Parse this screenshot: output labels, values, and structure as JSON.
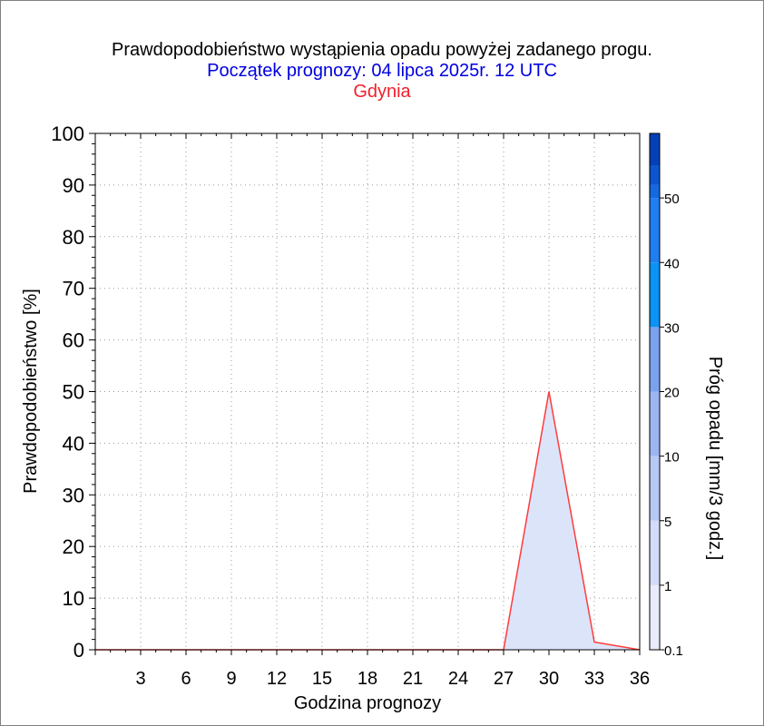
{
  "chart_data": {
    "type": "area",
    "title": "Prawdopodobieństwo wystąpienia opadu powyżej zadanego progu.",
    "subtitle": "Początek prognozy: 04 lipca 2025r. 12 UTC",
    "location": "Gdynia",
    "xlabel": "Godzina prognozy",
    "ylabel": "Prawdopodobieństwo [%]",
    "xlim": [
      0,
      36
    ],
    "ylim": [
      0,
      100
    ],
    "x_ticks": [
      3,
      6,
      9,
      12,
      15,
      18,
      21,
      24,
      27,
      30,
      33,
      36
    ],
    "y_ticks": [
      0,
      10,
      20,
      30,
      40,
      50,
      60,
      70,
      80,
      90,
      100
    ],
    "grid": true,
    "series": [
      {
        "x": [
          0,
          3,
          6,
          9,
          12,
          15,
          18,
          21,
          24,
          27,
          30,
          33,
          36
        ],
        "values": [
          0,
          0,
          0,
          0,
          0,
          0,
          0,
          0,
          0,
          0,
          50,
          1.5,
          0
        ],
        "color": "#ff3b3b",
        "fill": "#dce4fa"
      }
    ],
    "colorbar": {
      "label": "Próg opadu [mm/3 godz.]",
      "tick_labels": [
        "0.1",
        "1",
        "5",
        "10",
        "20",
        "30",
        "40",
        "50"
      ],
      "colors": [
        "#e8ecfb",
        "#d2dcf8",
        "#b9c9f5",
        "#9db6f2",
        "#7aa2ef",
        "#0b93f5",
        "#1f7ef0",
        "#1569e0",
        "#0b55d0",
        "#0440b8"
      ]
    }
  },
  "colors": {
    "title": "#000000",
    "subtitle": "#0000e0",
    "location": "#f0202a",
    "frame": "#808080"
  }
}
